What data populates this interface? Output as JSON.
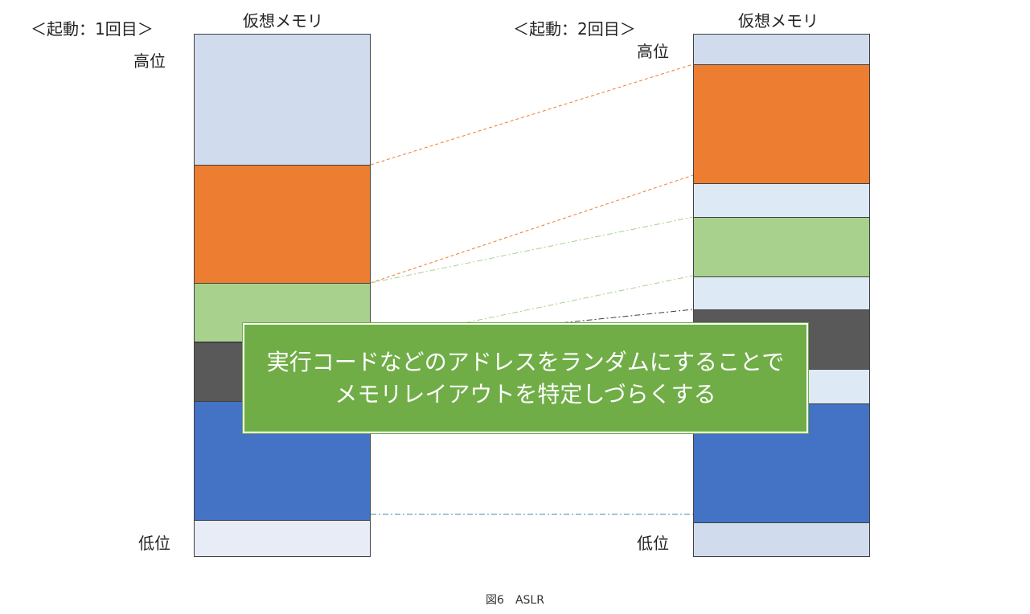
{
  "left": {
    "heading": "＜起動：1回目＞",
    "column_title": "仮想メモリ",
    "high_label": "高位",
    "low_label": "低位",
    "segments": [
      {
        "name": "light-blue",
        "color": "#d0dcee",
        "share": 0.25
      },
      {
        "name": "orange",
        "color": "#ed7d31",
        "share": 0.227
      },
      {
        "name": "green",
        "color": "#a9d18e",
        "share": 0.113
      },
      {
        "name": "dark-gray",
        "color": "#595959",
        "share": 0.113
      },
      {
        "name": "blue",
        "color": "#4472c4",
        "share": 0.228
      },
      {
        "name": "pale-blue",
        "color": "#e7ecf7",
        "share": 0.069
      }
    ]
  },
  "right": {
    "heading": "＜起動：2回目＞",
    "column_title": "仮想メモリ",
    "high_label": "高位",
    "low_label": "低位",
    "segments": [
      {
        "name": "light-blue",
        "color": "#d0dcee",
        "share": 0.058
      },
      {
        "name": "orange",
        "color": "#ed7d31",
        "share": 0.228
      },
      {
        "name": "pale-blue",
        "color": "#dee9f6",
        "share": 0.065
      },
      {
        "name": "green",
        "color": "#a9d18e",
        "share": 0.114
      },
      {
        "name": "pale-blue",
        "color": "#dee9f6",
        "share": 0.063
      },
      {
        "name": "dark-gray",
        "color": "#595959",
        "share": 0.114
      },
      {
        "name": "pale-blue",
        "color": "#dee9f6",
        "share": 0.065
      },
      {
        "name": "blue",
        "color": "#4472c4",
        "share": 0.229
      },
      {
        "name": "light-blue",
        "color": "#d0dcee",
        "share": 0.064
      }
    ]
  },
  "callout": {
    "line1": "実行コードなどのアドレスをランダムにすることで",
    "line2": "メモリレイアウトを特定しづらくする"
  },
  "caption": "図6　ASLR",
  "connector_colors": {
    "orange": "#ed7d31",
    "green": "#a9d18e",
    "dark": "#404040",
    "blue": "#4a8ab0"
  }
}
